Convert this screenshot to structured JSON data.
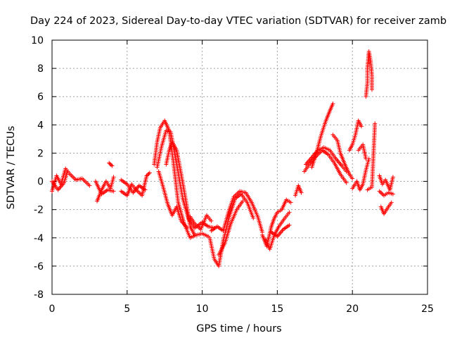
{
  "chart_data": {
    "type": "scatter",
    "title": "Day 224 of 2023, Sidereal Day-to-day VTEC variation (SDTVAR) for receiver zamb",
    "xlabel": "GPS time / hours",
    "ylabel": "SDTVAR / TECUs",
    "xlim": [
      0,
      25
    ],
    "ylim": [
      -8,
      10
    ],
    "xticks": [
      0,
      5,
      10,
      15,
      20,
      25
    ],
    "yticks": [
      -8,
      -6,
      -4,
      -2,
      0,
      2,
      4,
      6,
      8,
      10
    ],
    "grid": true,
    "marker": "+",
    "series": [
      {
        "name": "SDTVAR",
        "color": "#ff0000",
        "traces": [
          [
            [
              0.0,
              -0.7
            ],
            [
              0.3,
              0.4
            ],
            [
              0.6,
              -0.2
            ],
            [
              0.9,
              0.9
            ],
            [
              1.2,
              0.5
            ],
            [
              1.6,
              0.1
            ],
            [
              2.0,
              0.2
            ],
            [
              2.5,
              -0.3
            ]
          ],
          [
            [
              0.0,
              0.0
            ],
            [
              0.4,
              -0.6
            ],
            [
              0.8,
              -0.1
            ],
            [
              1.0,
              0.6
            ]
          ],
          [
            [
              3.0,
              -1.4
            ],
            [
              3.3,
              -0.6
            ],
            [
              3.6,
              0.0
            ],
            [
              3.9,
              -0.5
            ],
            [
              4.1,
              0.3
            ]
          ],
          [
            [
              2.9,
              0.0
            ],
            [
              3.3,
              -0.9
            ],
            [
              3.7,
              -0.6
            ],
            [
              4.1,
              -0.7
            ]
          ],
          [
            [
              3.8,
              1.3
            ],
            [
              4.0,
              1.1
            ]
          ],
          [
            [
              4.6,
              -0.7
            ],
            [
              5.0,
              -1.0
            ],
            [
              5.3,
              -0.2
            ],
            [
              5.6,
              -0.6
            ],
            [
              6.0,
              -1.0
            ],
            [
              6.3,
              0.4
            ],
            [
              6.5,
              0.6
            ]
          ],
          [
            [
              4.6,
              0.1
            ],
            [
              5.0,
              -0.2
            ],
            [
              5.4,
              -0.8
            ],
            [
              5.8,
              -0.3
            ],
            [
              6.2,
              -0.6
            ]
          ],
          [
            [
              6.8,
              1.2
            ],
            [
              7.0,
              2.8
            ],
            [
              7.2,
              3.8
            ],
            [
              7.5,
              4.3
            ],
            [
              7.8,
              3.6
            ],
            [
              8.1,
              1.2
            ],
            [
              8.4,
              -1.5
            ],
            [
              8.8,
              -3.0
            ],
            [
              9.2,
              -4.0
            ],
            [
              9.6,
              -3.8
            ],
            [
              10.0,
              -3.7
            ],
            [
              10.4,
              -3.9
            ]
          ],
          [
            [
              7.0,
              1.0
            ],
            [
              7.3,
              2.5
            ],
            [
              7.6,
              3.6
            ],
            [
              7.9,
              3.5
            ],
            [
              8.3,
              1.2
            ],
            [
              8.7,
              -1.2
            ],
            [
              9.1,
              -2.7
            ],
            [
              9.5,
              -3.3
            ],
            [
              10.0,
              -2.9
            ],
            [
              10.4,
              -3.2
            ],
            [
              10.8,
              -3.3
            ]
          ],
          [
            [
              7.6,
              1.2
            ],
            [
              7.8,
              2.2
            ],
            [
              8.0,
              2.8
            ],
            [
              8.3,
              2.2
            ],
            [
              8.6,
              0.5
            ],
            [
              8.9,
              -1.3
            ],
            [
              9.2,
              -3.2
            ],
            [
              9.5,
              -3.8
            ]
          ],
          [
            [
              7.1,
              0.7
            ],
            [
              7.4,
              -0.4
            ],
            [
              7.7,
              -1.6
            ],
            [
              8.0,
              -2.4
            ],
            [
              8.3,
              -1.8
            ],
            [
              8.6,
              -2.8
            ],
            [
              9.0,
              -3.3
            ]
          ],
          [
            [
              10.5,
              -4.0
            ],
            [
              10.8,
              -5.5
            ],
            [
              11.1,
              -6.0
            ],
            [
              11.4,
              -4.2
            ],
            [
              11.8,
              -2.5
            ],
            [
              12.2,
              -1.2
            ],
            [
              12.6,
              -0.9
            ],
            [
              13.0,
              -1.5
            ],
            [
              13.4,
              -2.6
            ]
          ],
          [
            [
              10.6,
              -3.5
            ],
            [
              11.0,
              -3.2
            ],
            [
              11.4,
              -3.5
            ],
            [
              11.8,
              -2.0
            ],
            [
              12.1,
              -1.1
            ],
            [
              12.5,
              -0.7
            ],
            [
              12.9,
              -0.8
            ],
            [
              13.3,
              -1.5
            ],
            [
              13.7,
              -2.5
            ],
            [
              14.0,
              -3.6
            ]
          ],
          [
            [
              11.1,
              -5.2
            ],
            [
              11.5,
              -4.4
            ],
            [
              11.9,
              -3.0
            ],
            [
              12.3,
              -2.0
            ],
            [
              12.7,
              -1.4
            ]
          ],
          [
            [
              9.2,
              -2.5
            ],
            [
              9.5,
              -3.0
            ],
            [
              9.9,
              -3.4
            ],
            [
              10.3,
              -2.4
            ],
            [
              10.6,
              -2.8
            ]
          ],
          [
            [
              14.0,
              -3.8
            ],
            [
              14.3,
              -4.6
            ],
            [
              14.6,
              -3.2
            ],
            [
              14.8,
              -2.6
            ],
            [
              15.0,
              -2.2
            ],
            [
              15.3,
              -2.0
            ],
            [
              15.6,
              -1.3
            ],
            [
              15.9,
              -1.5
            ]
          ],
          [
            [
              14.2,
              -4.1
            ],
            [
              14.5,
              -4.8
            ],
            [
              14.8,
              -3.8
            ],
            [
              15.1,
              -3.2
            ],
            [
              15.5,
              -2.6
            ],
            [
              15.8,
              -2.2
            ]
          ],
          [
            [
              14.6,
              -3.6
            ],
            [
              15.0,
              -3.9
            ],
            [
              15.4,
              -3.4
            ],
            [
              15.8,
              -3.1
            ]
          ],
          [
            [
              16.2,
              -1.0
            ],
            [
              16.4,
              -0.3
            ],
            [
              16.6,
              -0.8
            ]
          ],
          [
            [
              16.8,
              0.7
            ],
            [
              17.2,
              1.3
            ],
            [
              17.6,
              1.8
            ],
            [
              18.0,
              2.2
            ],
            [
              18.4,
              1.9
            ],
            [
              18.8,
              1.3
            ],
            [
              19.2,
              0.5
            ],
            [
              19.6,
              -0.1
            ]
          ],
          [
            [
              16.9,
              1.2
            ],
            [
              17.3,
              1.7
            ],
            [
              17.7,
              2.2
            ],
            [
              18.1,
              2.4
            ],
            [
              18.5,
              2.2
            ],
            [
              18.9,
              1.6
            ],
            [
              19.3,
              1.1
            ],
            [
              19.6,
              0.7
            ]
          ],
          [
            [
              17.3,
              1.0
            ],
            [
              17.6,
              2.0
            ],
            [
              17.9,
              3.2
            ],
            [
              18.2,
              4.2
            ],
            [
              18.5,
              5.0
            ],
            [
              18.7,
              5.5
            ]
          ],
          [
            [
              18.7,
              3.3
            ],
            [
              19.0,
              2.9
            ],
            [
              19.2,
              2.0
            ],
            [
              19.5,
              1.2
            ],
            [
              19.8,
              0.5
            ],
            [
              20.0,
              0.2
            ]
          ],
          [
            [
              19.8,
              2.2
            ],
            [
              20.0,
              2.6
            ],
            [
              20.2,
              3.3
            ],
            [
              20.4,
              4.3
            ],
            [
              20.6,
              3.9
            ]
          ],
          [
            [
              20.0,
              -0.5
            ],
            [
              20.3,
              0.0
            ],
            [
              20.5,
              -0.6
            ],
            [
              20.7,
              -0.2
            ],
            [
              20.9,
              0.8
            ],
            [
              21.1,
              1.6
            ]
          ],
          [
            [
              20.4,
              2.2
            ],
            [
              20.7,
              2.6
            ],
            [
              20.9,
              1.6
            ]
          ],
          [
            [
              20.9,
              6.0
            ],
            [
              21.0,
              7.0
            ],
            [
              21.0,
              8.0
            ],
            [
              21.1,
              9.2
            ],
            [
              21.2,
              8.6
            ],
            [
              21.3,
              7.5
            ],
            [
              21.3,
              6.5
            ]
          ],
          [
            [
              21.0,
              -0.6
            ],
            [
              21.3,
              -0.4
            ],
            [
              21.5,
              4.1
            ]
          ],
          [
            [
              21.8,
              0.4
            ],
            [
              22.0,
              -0.2
            ],
            [
              22.2,
              0.1
            ],
            [
              22.5,
              -0.6
            ],
            [
              22.7,
              0.3
            ]
          ],
          [
            [
              21.9,
              -1.8
            ],
            [
              22.1,
              -2.3
            ],
            [
              22.4,
              -1.8
            ],
            [
              22.6,
              -1.5
            ]
          ],
          [
            [
              21.8,
              -0.7
            ],
            [
              22.1,
              -1.0
            ],
            [
              22.4,
              -0.8
            ],
            [
              22.7,
              -0.9
            ]
          ]
        ]
      }
    ]
  }
}
